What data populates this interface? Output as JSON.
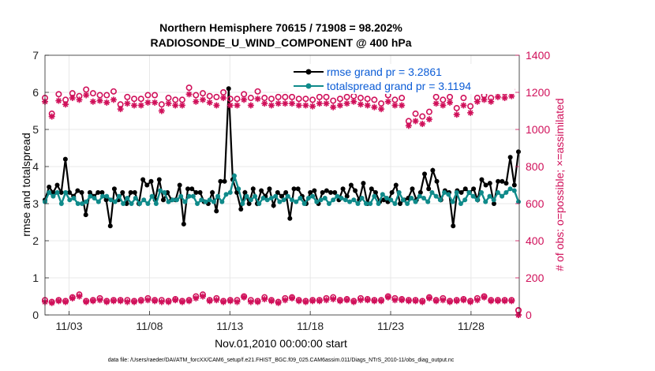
{
  "chart_data": {
    "type": "line",
    "title_line1": "Northern Hemisphere 70615 / 71908 = 98.202%",
    "title_line2": "RADIOSONDE_U_WIND_COMPONENT @ 400 hPa",
    "xlabel": "Nov.01,2010 00:00:00 start",
    "ylabel_left": "rmse and totalspread",
    "ylabel_right": "# of obs: o=possible; ×=assimilated",
    "footnote": "data file: /Users/raeder/DAI/ATM_forcXX/CAM6_setup/f.e21.FHIST_BGC.f09_025.CAM6assim.011/Diags_NTrS_2010-11/obs_diag_output.nc",
    "xlim": [
      1.5,
      31.0
    ],
    "ylim_left": [
      0,
      7
    ],
    "ylim_right": [
      0,
      1400
    ],
    "x_ticks": [
      3,
      8,
      13,
      18,
      23,
      28
    ],
    "x_tick_labels": [
      "11/03",
      "11/08",
      "11/13",
      "11/18",
      "11/23",
      "11/28"
    ],
    "y_left_ticks": [
      "0",
      "1",
      "2",
      "3",
      "4",
      "5",
      "6",
      "7"
    ],
    "y_right_ticks": [
      "0",
      "200",
      "400",
      "600",
      "800",
      "1000",
      "1200",
      "1400"
    ],
    "x_start": 1.5,
    "x_step": 0.25,
    "legend": [
      {
        "label": "rmse grand pr = 3.2861",
        "color": "#000000"
      },
      {
        "label": "totalspread grand pr = 3.1194",
        "color": "#0f8a8a"
      }
    ],
    "series": [
      {
        "name": "rmse",
        "color": "#000000",
        "values": [
          3.1,
          3.45,
          3.3,
          3.5,
          3.3,
          4.2,
          3.3,
          3.2,
          3.35,
          3.3,
          2.7,
          3.3,
          3.2,
          3.3,
          3.3,
          3.1,
          2.4,
          3.4,
          3.1,
          3.3,
          3.0,
          3.3,
          3.3,
          3.0,
          3.65,
          3.5,
          3.6,
          3.1,
          3.65,
          3.1,
          3.3,
          3.1,
          3.1,
          3.5,
          2.45,
          3.4,
          3.4,
          3.3,
          3.3,
          3.05,
          3.0,
          3.3,
          2.8,
          3.6,
          3.6,
          6.1,
          3.65,
          3.3,
          2.85,
          3.3,
          3.0,
          3.4,
          3.0,
          3.35,
          3.2,
          3.4,
          2.95,
          3.3,
          3.2,
          3.3,
          2.6,
          3.4,
          3.4,
          3.2,
          3.0,
          3.3,
          3.35,
          3.0,
          3.3,
          3.35,
          3.3,
          3.3,
          3.1,
          3.4,
          3.2,
          3.5,
          3.35,
          3.1,
          3.55,
          3.0,
          3.4,
          3.3,
          3.05,
          3.1,
          3.05,
          3.3,
          3.5,
          3.0,
          3.1,
          3.15,
          3.4,
          3.1,
          3.3,
          3.8,
          3.4,
          3.9,
          3.6,
          3.1,
          3.35,
          3.3,
          2.4,
          3.35,
          3.3,
          3.4,
          3.3,
          3.4,
          3.1,
          3.65,
          3.5,
          3.55,
          3.0,
          3.6,
          3.6,
          3.55,
          4.25,
          3.5,
          4.4
        ],
        "hide_last": true
      },
      {
        "name": "totalspread",
        "color": "#0f8a8a",
        "values": [
          3.05,
          3.3,
          3.2,
          3.3,
          3.0,
          3.3,
          3.1,
          3.15,
          3.0,
          3.0,
          3.05,
          3.2,
          3.15,
          3.05,
          3.2,
          3.2,
          3.1,
          3.05,
          3.2,
          3.0,
          3.15,
          3.0,
          3.15,
          3.0,
          3.1,
          3.0,
          3.2,
          3.0,
          3.35,
          3.3,
          3.05,
          3.1,
          3.1,
          3.2,
          3.05,
          3.2,
          3.2,
          3.0,
          3.1,
          3.05,
          3.1,
          3.05,
          3.2,
          3.05,
          3.25,
          3.3,
          3.75,
          3.4,
          3.0,
          3.2,
          3.1,
          3.2,
          3.0,
          3.15,
          3.1,
          3.15,
          3.2,
          3.05,
          3.1,
          3.2,
          3.1,
          3.05,
          3.15,
          3.0,
          3.15,
          3.2,
          3.05,
          3.1,
          3.15,
          3.0,
          3.1,
          3.2,
          3.15,
          3.1,
          3.05,
          3.1,
          3.0,
          3.15,
          3.0,
          3.0,
          3.2,
          3.0,
          3.25,
          3.15,
          3.1,
          3.0,
          3.3,
          3.1,
          3.0,
          3.15,
          3.05,
          3.2,
          3.15,
          3.05,
          3.3,
          3.2,
          3.1,
          3.3,
          3.25,
          3.05,
          3.3,
          3.0,
          3.1,
          3.3,
          3.2,
          3.1,
          3.3,
          3.05,
          3.2,
          3.1,
          3.3,
          3.2,
          3.3,
          3.4,
          3.35,
          3.05
        ],
        "hide_last": false
      },
      {
        "name": "possible",
        "color": "#d0105a",
        "values": [
          1170,
          1085,
          1190,
          1160,
          1195,
          1180,
          1215,
          1195,
          1185,
          1185,
          1205,
          1135,
          1175,
          1165,
          1165,
          1185,
          1185,
          1135,
          1170,
          1160,
          1160,
          1225,
          1185,
          1195,
          1180,
          1175,
          1200,
          1165,
          1165,
          1190,
          1170,
          1205,
          1170,
          1165,
          1175,
          1175,
          1175,
          1165,
          1165,
          1160,
          1175,
          1175,
          1155,
          1165,
          1175,
          1180,
          1170,
          1165,
          1160,
          1140,
          1185,
          1160,
          1170,
          1045,
          1085,
          1070,
          1095,
          1175,
          1160,
          1175,
          1115,
          1170,
          1125,
          1170,
          1185,
          1170,
          1205,
          1200,
          1215,
          25
        ],
        "hide_last": false
      },
      {
        "name": "assimilated",
        "color": "#d0105a",
        "values": [
          1150,
          1070,
          1155,
          1135,
          1170,
          1160,
          1185,
          1150,
          1155,
          1145,
          1160,
          1110,
          1140,
          1130,
          1130,
          1145,
          1145,
          1100,
          1140,
          1130,
          1130,
          1190,
          1150,
          1160,
          1145,
          1130,
          1170,
          1130,
          1130,
          1160,
          1130,
          1165,
          1140,
          1130,
          1140,
          1140,
          1140,
          1130,
          1130,
          1125,
          1140,
          1140,
          1120,
          1130,
          1140,
          1150,
          1135,
          1130,
          1120,
          1110,
          1150,
          1130,
          1130,
          1020,
          1045,
          1030,
          1055,
          1140,
          1130,
          1145,
          1080,
          1130,
          1090,
          1150,
          1160,
          1150,
          1175,
          1170,
          1180,
          0
        ],
        "hide_last": false
      },
      {
        "name": "possible_low",
        "color": "#d0105a",
        "values": [
          80,
          70,
          80,
          75,
          95,
          110,
          75,
          80,
          90,
          75,
          80,
          80,
          80,
          75,
          80,
          90,
          80,
          80,
          75,
          85,
          75,
          80,
          100,
          110,
          80,
          90,
          75,
          80,
          80,
          100,
          80,
          75,
          95,
          80,
          70,
          90,
          95,
          80,
          75,
          80,
          80,
          90,
          95,
          80,
          85,
          75,
          90,
          85,
          80,
          80,
          100,
          90,
          85,
          80,
          80,
          75,
          95,
          80,
          90,
          75,
          80,
          85,
          75,
          90,
          100,
          80,
          80,
          80,
          80,
          25
        ],
        "hide_last": false
      },
      {
        "name": "assimilated_low",
        "color": "#d0105a",
        "values": [
          70,
          65,
          75,
          70,
          90,
          100,
          70,
          75,
          80,
          70,
          75,
          75,
          70,
          70,
          75,
          80,
          75,
          70,
          70,
          80,
          70,
          75,
          90,
          100,
          75,
          80,
          70,
          75,
          70,
          95,
          70,
          70,
          85,
          75,
          65,
          80,
          90,
          75,
          70,
          75,
          75,
          80,
          85,
          75,
          80,
          70,
          80,
          80,
          75,
          75,
          95,
          80,
          80,
          75,
          75,
          70,
          90,
          75,
          80,
          70,
          75,
          80,
          70,
          80,
          95,
          75,
          75,
          75,
          75,
          0
        ],
        "hide_last": false
      }
    ]
  }
}
